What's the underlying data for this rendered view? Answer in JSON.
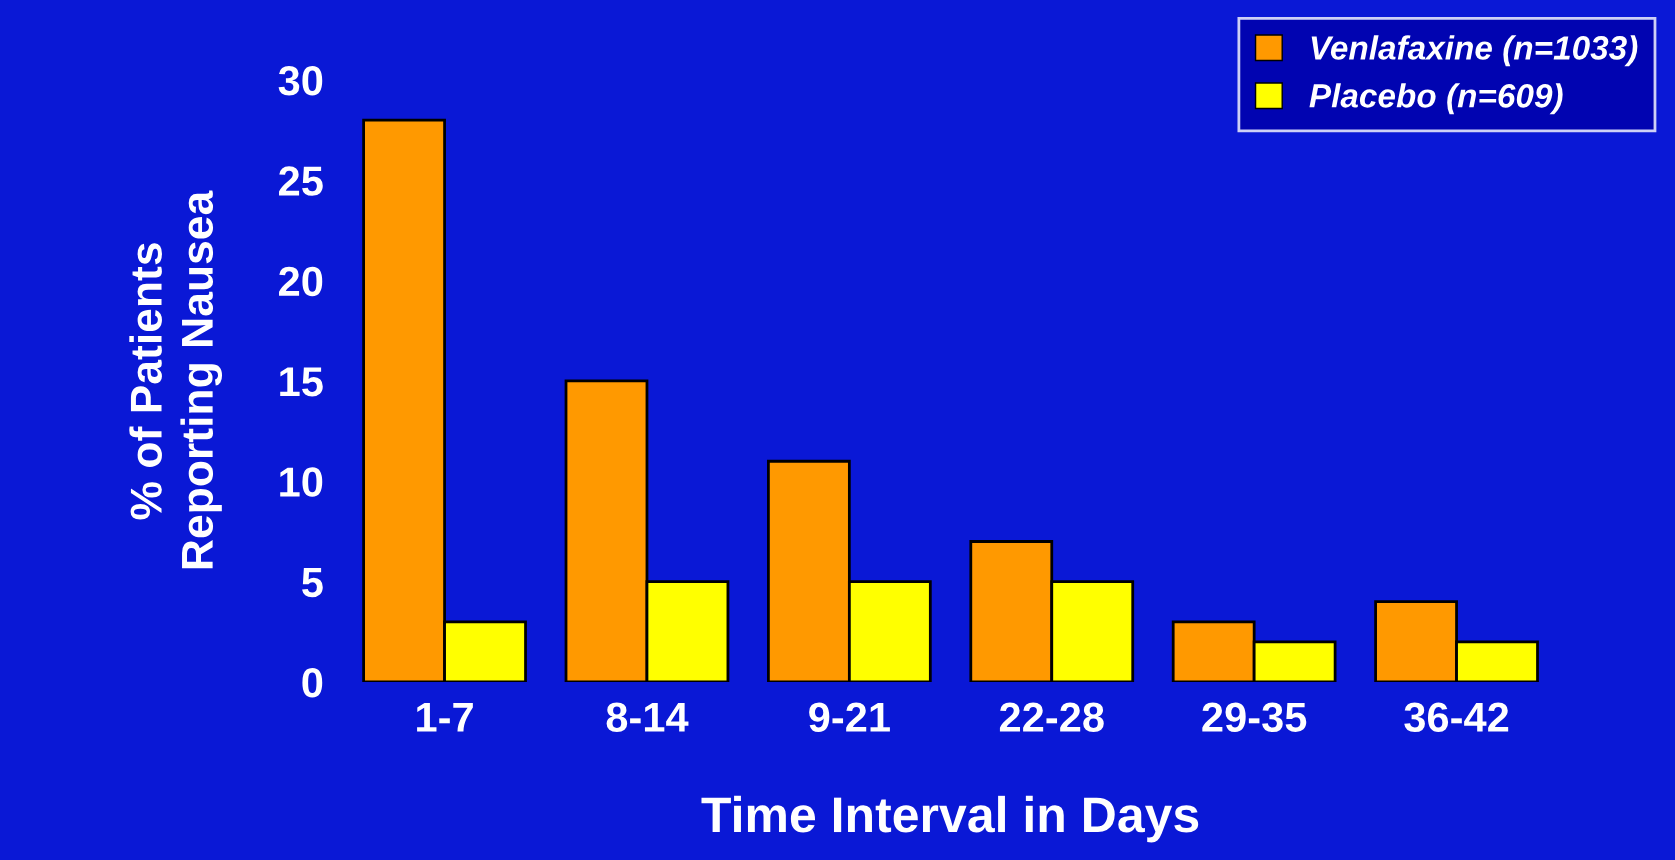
{
  "chart_data": {
    "type": "bar",
    "xlabel": "Time Interval in Days",
    "ylabel": "% of Patients\nReporting Nausea",
    "categories": [
      "1-7",
      "8-14",
      "9-21",
      "22-28",
      "29-35",
      "36-42"
    ],
    "series": [
      {
        "name": "Venlafaxine (n=1033)",
        "color": "#ff9900",
        "values": [
          28,
          15,
          11,
          7,
          3,
          4
        ]
      },
      {
        "name": "Placebo (n=609)",
        "color": "#ffff00",
        "values": [
          3,
          5,
          5,
          5,
          2,
          2
        ]
      }
    ],
    "ylim": [
      0,
      30
    ],
    "yticks": [
      0,
      5,
      10,
      15,
      20,
      25,
      30
    ],
    "grid": false,
    "legend": "top right"
  }
}
